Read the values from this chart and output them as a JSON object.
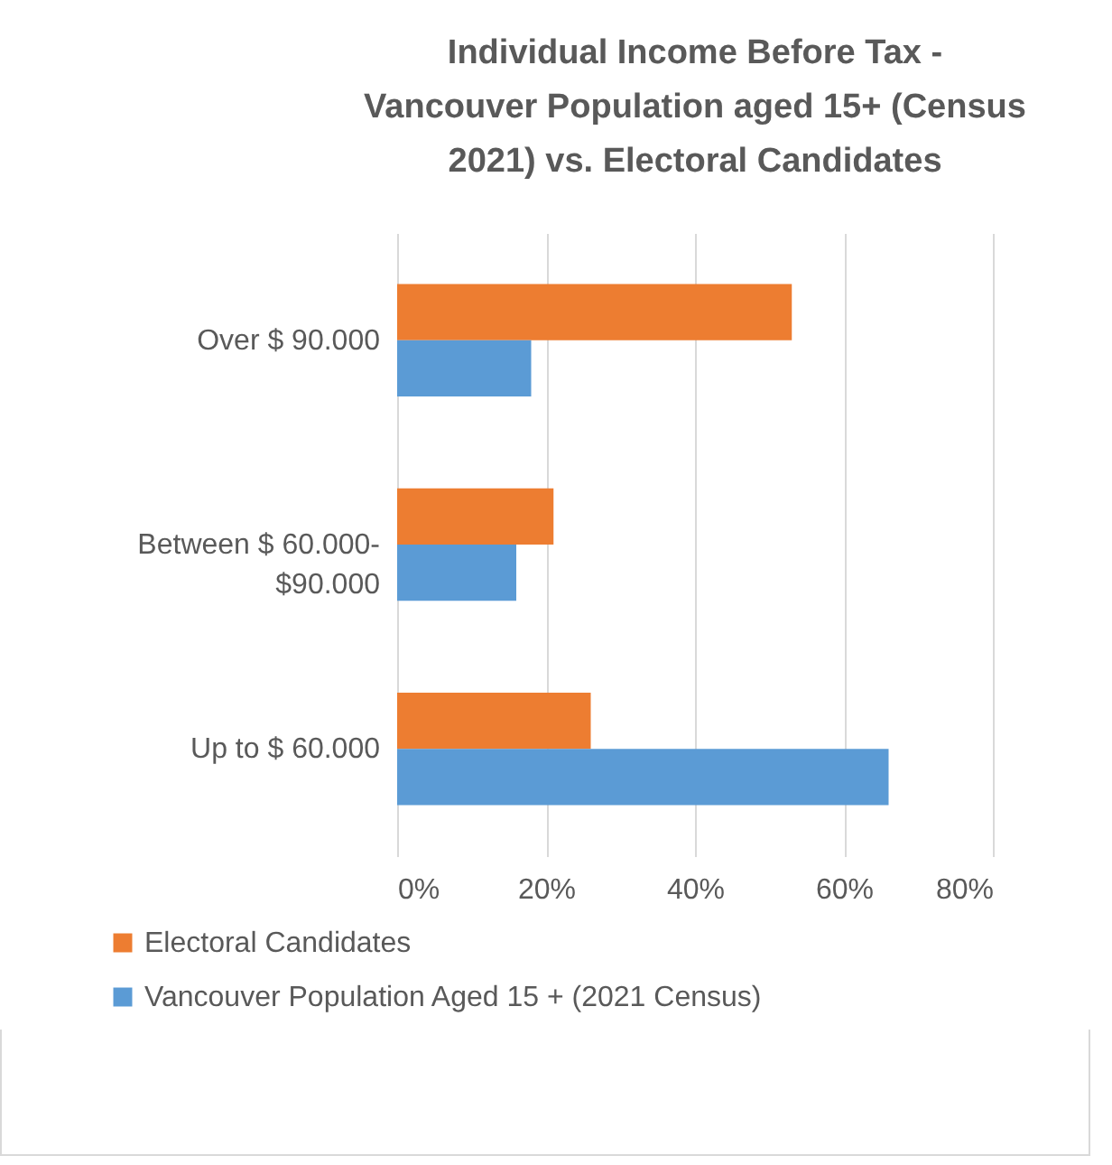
{
  "chart_data": {
    "type": "bar",
    "orientation": "horizontal",
    "title": "Individual Income Before Tax - Vancouver Population aged 15+ (Census 2021) vs. Electoral Candidates",
    "categories": [
      "Over $ 90.000",
      "Between $ 60.000-$90.000",
      "Up to $ 60.000"
    ],
    "series": [
      {
        "name": "Electoral Candidates",
        "color": "#ed7d31",
        "values": [
          53,
          21,
          26
        ]
      },
      {
        "name": "Vancouver Population Aged 15 + (2021 Census)",
        "color": "#5b9bd5",
        "values": [
          18,
          16,
          66
        ]
      }
    ],
    "xlim": [
      0,
      80
    ],
    "xticks": [
      {
        "value": 0,
        "label": "0%"
      },
      {
        "value": 20,
        "label": "20%"
      },
      {
        "value": 40,
        "label": "40%"
      },
      {
        "value": 60,
        "label": "60%"
      },
      {
        "value": 80,
        "label": "80%"
      }
    ],
    "grid": "x",
    "legend": "bottom"
  }
}
